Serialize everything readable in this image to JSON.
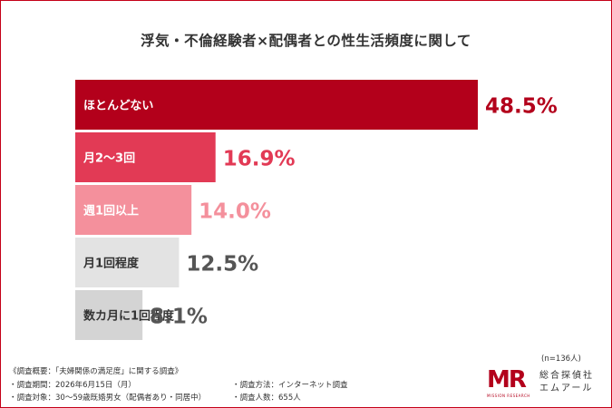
{
  "chart_data": {
    "type": "bar",
    "orientation": "horizontal",
    "title": "浮気・不倫経験者×配偶者との性生活頻度に関して",
    "categories": [
      "ほとんどない",
      "月2〜3回",
      "週1回以上",
      "月1回程度",
      "数カ月に1回程度"
    ],
    "values": [
      48.5,
      16.9,
      14.0,
      12.5,
      8.1
    ],
    "value_labels": [
      "48.5%",
      "16.9%",
      "14.0%",
      "12.5%",
      "8.1%"
    ],
    "bar_colors": [
      "#b3001b",
      "#e23a55",
      "#f4909c",
      "#e3e3e3",
      "#d4d4d4"
    ],
    "label_colors": [
      "#ffffff",
      "#ffffff",
      "#ffffff",
      "#333333",
      "#333333"
    ],
    "value_colors": [
      "#b3001b",
      "#e23a55",
      "#f4909c",
      "#555555",
      "#555555"
    ],
    "xlim": [
      0,
      48.5
    ],
    "grid": false,
    "legend": "none"
  },
  "notes": {
    "sample": "(n=136人)",
    "summary": "《調査概要：「夫婦関係の満足度」に関する調査》",
    "period": "調査期間：2026年6月15日（月）",
    "target": "調査対象：30〜59歳既婚男女（配偶者あり・同居中）",
    "method": "調査方法：インターネット調査",
    "count": "調査人数：655人"
  },
  "logo": {
    "mark": "MR",
    "sub": "MISSION RESEARCH",
    "name_line1": "総合探偵社",
    "name_line2": "エムアール"
  }
}
